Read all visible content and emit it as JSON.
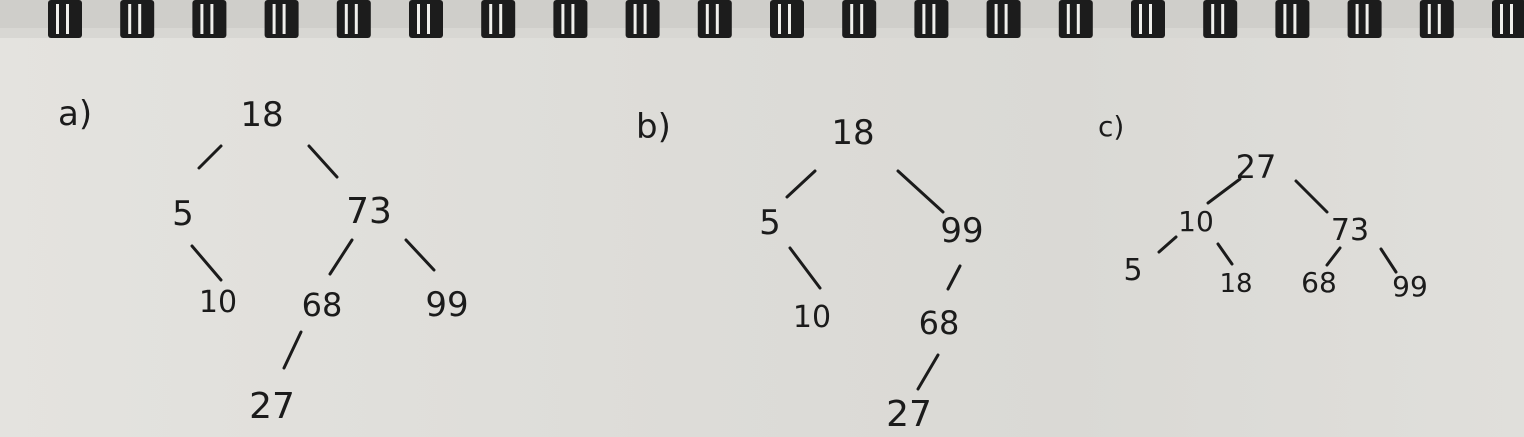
{
  "trees": [
    {
      "label": "a)",
      "nodes": [
        {
          "id": "a-18",
          "value": "18"
        },
        {
          "id": "a-5",
          "value": "5"
        },
        {
          "id": "a-73",
          "value": "73"
        },
        {
          "id": "a-10",
          "value": "10"
        },
        {
          "id": "a-68",
          "value": "68"
        },
        {
          "id": "a-99",
          "value": "99"
        },
        {
          "id": "a-27",
          "value": "27"
        }
      ],
      "edges": [
        [
          "18",
          "5"
        ],
        [
          "18",
          "73"
        ],
        [
          "5",
          "10"
        ],
        [
          "73",
          "68"
        ],
        [
          "73",
          "99"
        ],
        [
          "68",
          "27"
        ]
      ]
    },
    {
      "label": "b)",
      "nodes": [
        {
          "id": "b-18",
          "value": "18"
        },
        {
          "id": "b-5",
          "value": "5"
        },
        {
          "id": "b-99",
          "value": "99"
        },
        {
          "id": "b-10",
          "value": "10"
        },
        {
          "id": "b-68",
          "value": "68"
        },
        {
          "id": "b-27",
          "value": "27"
        }
      ],
      "edges": [
        [
          "18",
          "5"
        ],
        [
          "18",
          "99"
        ],
        [
          "5",
          "10"
        ],
        [
          "99",
          "68"
        ],
        [
          "68",
          "27"
        ]
      ]
    },
    {
      "label": "c)",
      "nodes": [
        {
          "id": "c-27",
          "value": "27"
        },
        {
          "id": "c-10",
          "value": "10"
        },
        {
          "id": "c-73",
          "value": "73"
        },
        {
          "id": "c-5",
          "value": "5"
        },
        {
          "id": "c-18",
          "value": "18"
        },
        {
          "id": "c-68",
          "value": "68"
        },
        {
          "id": "c-99",
          "value": "99"
        }
      ],
      "edges": [
        [
          "27",
          "10"
        ],
        [
          "27",
          "73"
        ],
        [
          "10",
          "5"
        ],
        [
          "10",
          "18"
        ],
        [
          "73",
          "68"
        ],
        [
          "73",
          "99"
        ]
      ]
    }
  ]
}
